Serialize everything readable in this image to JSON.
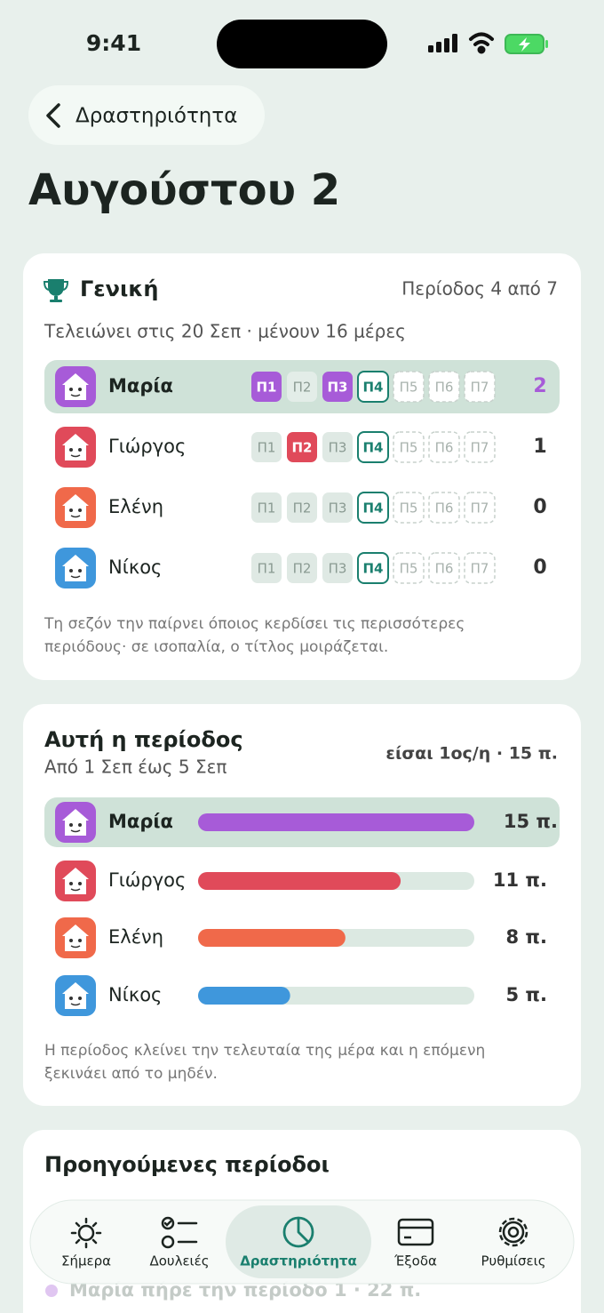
{
  "status_bar": {
    "time": "9:41"
  },
  "back_button": {
    "label": "Δραστηριότητα"
  },
  "page_title": "Αυγούστου 2",
  "season_card": {
    "title": "Γενική",
    "progress": "Περίοδος 4 από 7",
    "subtitle": "Τελειώνει στις 20 Σεπ · μένουν 16 μέρες",
    "period_labels": [
      "Π1",
      "Π2",
      "Π3",
      "Π4",
      "Π5",
      "Π6",
      "Π7"
    ],
    "rows": [
      {
        "name": "Μαρία",
        "color": "#a75bd8",
        "highlight": true,
        "periods": [
          "won",
          "past",
          "won",
          "current",
          "future",
          "future",
          "future"
        ],
        "score": 2
      },
      {
        "name": "Γιώργος",
        "color": "#e04a5a",
        "highlight": false,
        "periods": [
          "past",
          "won",
          "past",
          "current",
          "future",
          "future",
          "future"
        ],
        "score": 1
      },
      {
        "name": "Ελένη",
        "color": "#f0694a",
        "highlight": false,
        "periods": [
          "past",
          "past",
          "past",
          "current",
          "future",
          "future",
          "future"
        ],
        "score": 0
      },
      {
        "name": "Νίκος",
        "color": "#3f97dc",
        "highlight": false,
        "periods": [
          "past",
          "past",
          "past",
          "current",
          "future",
          "future",
          "future"
        ],
        "score": 0
      }
    ],
    "footnote": [
      "Τη σεζόν την παίρνει όποιος κερδίσει τις περισσότερες",
      "περιόδους· σε ισοπαλία, ο τίτλος μοιράζεται."
    ]
  },
  "period_card": {
    "title": "Αυτή η περίοδος",
    "dates": "Από 1 Σεπ έως 5 Σεπ",
    "rank": "είσαι 1ος/η · 15 π.",
    "xlim": [
      0,
      15
    ],
    "rows": [
      {
        "name": "Μαρία",
        "color": "#a75bd8",
        "highlight": true,
        "value": 15,
        "value_label": "15 π."
      },
      {
        "name": "Γιώργος",
        "color": "#e04a5a",
        "highlight": false,
        "value": 11,
        "value_label": "11 π."
      },
      {
        "name": "Ελένη",
        "color": "#f0694a",
        "highlight": false,
        "value": 8,
        "value_label": "8 π."
      },
      {
        "name": "Νίκος",
        "color": "#3f97dc",
        "highlight": false,
        "value": 5,
        "value_label": "5 π."
      }
    ],
    "footnote": [
      "Η περίοδος κλείνει την τελευταία της μέρα και η επόμενη",
      "ξεκινάει από το μηδέν."
    ]
  },
  "history_card": {
    "title": "Προηγούμενες περίοδοι",
    "entries": [
      {
        "text": "Μαρία πήρε την περίοδο 1 · 22 π.",
        "color": "#a75bd8"
      }
    ]
  },
  "tab_bar": {
    "items": [
      "Σήμερα",
      "Δουλειές",
      "Δραστηριότητα",
      "Έξοδα",
      "Ρυθμίσεις"
    ],
    "active": 2
  }
}
